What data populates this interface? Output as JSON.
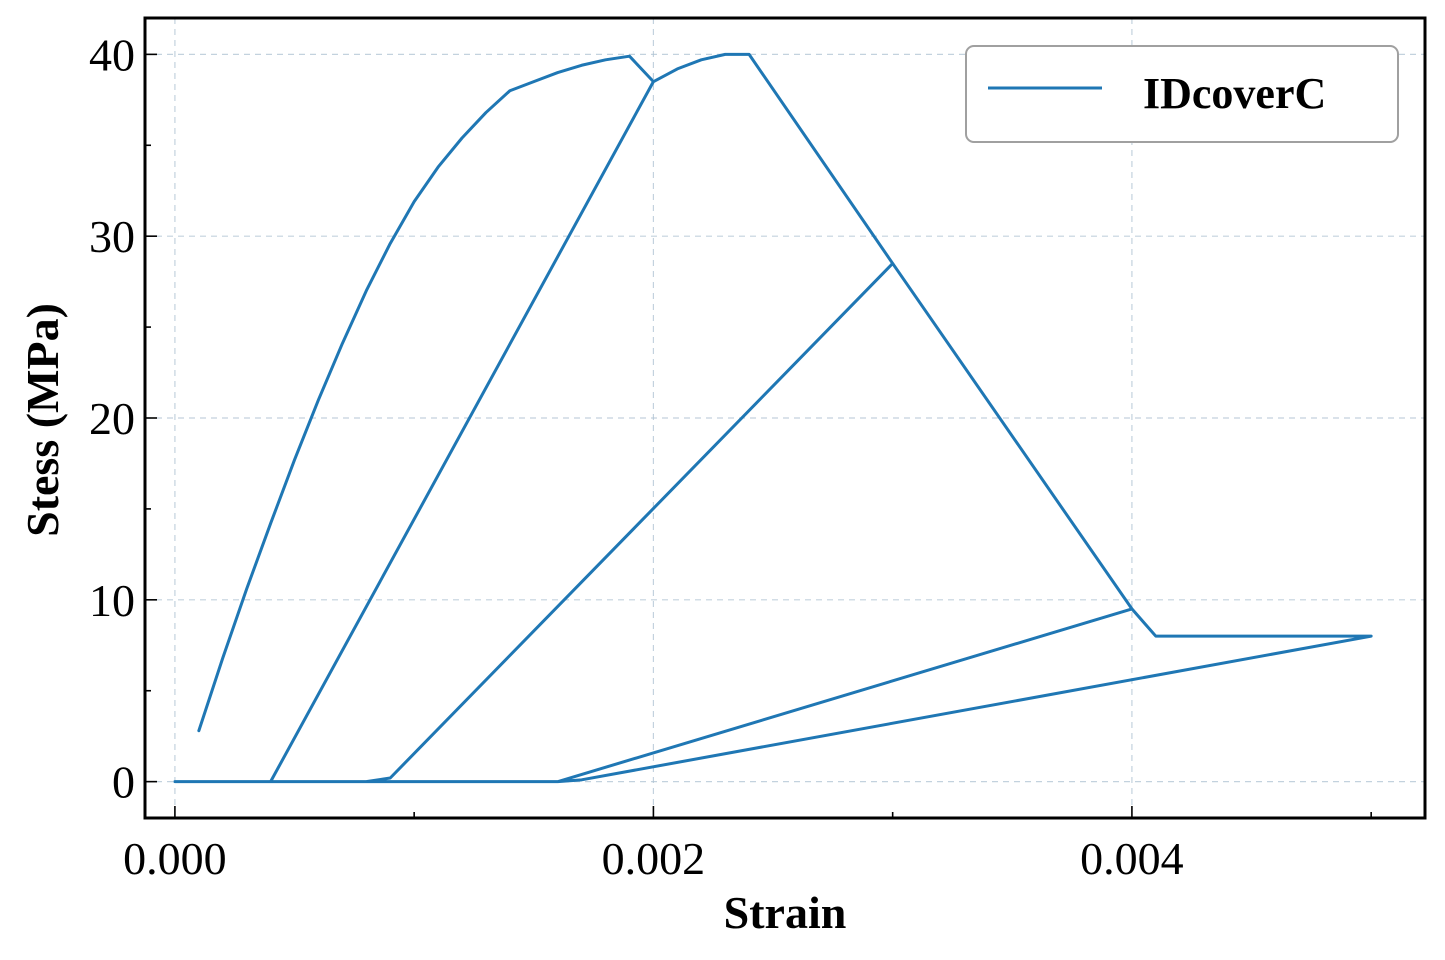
{
  "chart_data": {
    "type": "line",
    "title": "",
    "xlabel": "Strain",
    "ylabel": "Stess (MPa)",
    "xlim": [
      -0.000125,
      0.005225
    ],
    "ylim": [
      -2,
      42
    ],
    "x_ticks": [
      0.0,
      0.002,
      0.004
    ],
    "x_tick_labels": [
      "0.000",
      "0.002",
      "0.004"
    ],
    "x_minor_ticks": [
      0.001,
      0.003,
      0.005
    ],
    "y_ticks": [
      0,
      10,
      20,
      30,
      40
    ],
    "y_tick_labels": [
      "0",
      "10",
      "20",
      "30",
      "40"
    ],
    "y_minor_ticks": [
      5,
      15,
      25,
      35
    ],
    "grid": true,
    "legend_position": "top-right",
    "color": "#1f77b4",
    "series": [
      {
        "name": "IDcoverC",
        "x": [
          0.0001,
          0.0002,
          0.0003,
          0.0004,
          0.0005,
          0.0006,
          0.0007,
          0.0008,
          0.0009,
          0.001,
          0.0011,
          0.0012,
          0.0013,
          0.0014,
          0.0015,
          0.0016,
          0.0017,
          0.0018,
          0.0019,
          0.002,
          0.0021,
          0.0022,
          0.0023,
          0.0024,
          0.003,
          0.004,
          0.0041,
          0.005,
          0.0017,
          0.0016,
          0.0,
          0.0004,
          0.002,
          0.0004,
          0.0008,
          0.0009,
          0.003,
          0.0009,
          0.0008,
          0.0,
          0.0016,
          0.004,
          0.0016
        ],
        "y": [
          2.8,
          6.8,
          10.6,
          14.2,
          17.7,
          21.0,
          24.1,
          27.0,
          29.6,
          31.9,
          33.8,
          35.4,
          36.8,
          38.0,
          38.5,
          39.0,
          39.4,
          39.7,
          39.9,
          38.5,
          39.2,
          39.7,
          40.0,
          40.0,
          28.5,
          9.5,
          8.0,
          8.0,
          0.1,
          0.0,
          0.0,
          0.0,
          38.5,
          0.0,
          0.0,
          0.2,
          28.5,
          0.2,
          0.0,
          0.0,
          0.0,
          9.5,
          0.0
        ]
      }
    ]
  }
}
